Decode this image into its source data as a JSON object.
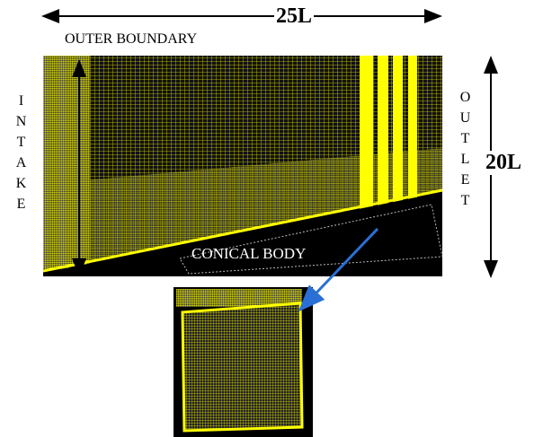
{
  "dimension_length": "25L",
  "outer_boundary": "OUTER BOUNDARY",
  "intake": "INTAKE",
  "outlet": "OUTLET",
  "dimension_height": "20L",
  "body": "CONICAL BODY"
}
